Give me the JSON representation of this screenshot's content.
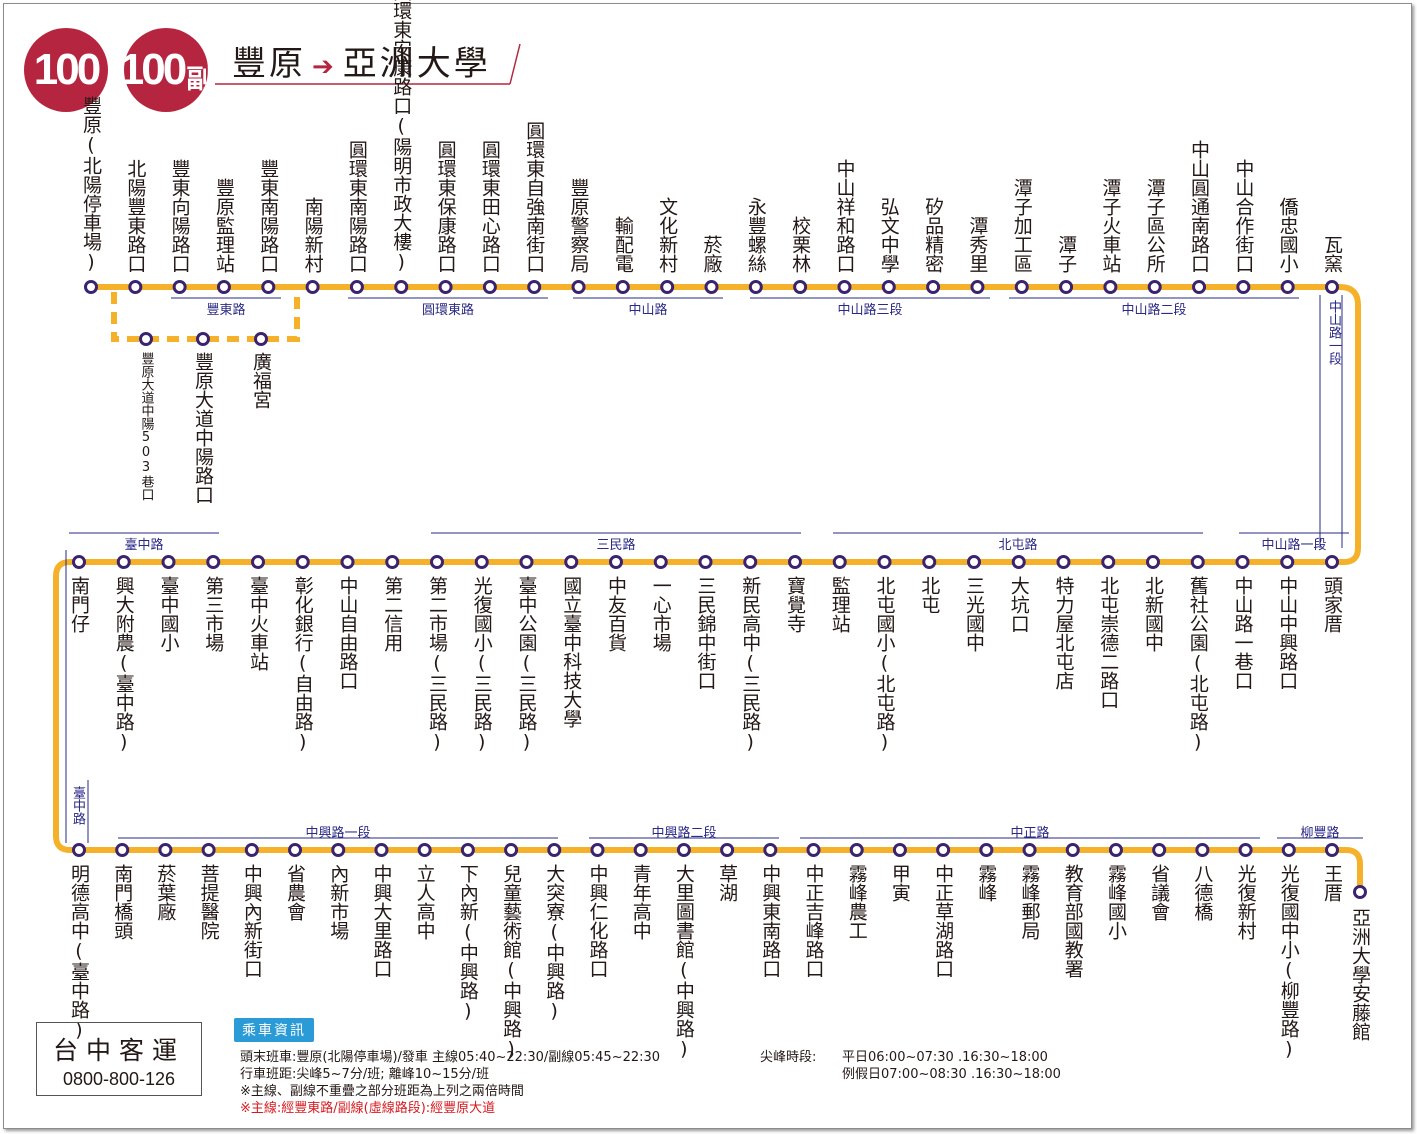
{
  "header": {
    "badge_main": "100",
    "badge_sub_num": "100",
    "badge_sub_suffix": "副",
    "from": "豐原",
    "to": "亞洲大學"
  },
  "colors": {
    "route": "#f6b12b",
    "stop_ring": "#3a2470",
    "brand": "#b5253f",
    "road_label": "#2a2985"
  },
  "rows": [
    {
      "name": "row1",
      "stops": [
        "豐原(北陽停車場)",
        "北陽豐東路口",
        "豐東向陽路口",
        "豐原監理站",
        "豐東南陽路口",
        "南陽新村",
        "圓環東南陽路口",
        "圓環東安康路口(陽明市政大樓)",
        "圓環東保康路口",
        "圓環東田心路口",
        "圓環東自強南街口",
        "豐原警察局",
        "輸配電",
        "文化新村",
        "菸廠",
        "永豐螺絲",
        "校栗林",
        "中山祥和路口",
        "弘文中學",
        "矽品精密",
        "潭秀里",
        "潭子加工區",
        "潭子",
        "潭子火車站",
        "潭子區公所",
        "中山圓通南路口",
        "中山合作街口",
        "僑忠國小",
        "瓦窯"
      ]
    },
    {
      "name": "branch",
      "stops": [
        "豐原大道中陽503巷口",
        "豐原大道中陽路口",
        "廣福宮"
      ]
    },
    {
      "name": "row2",
      "stops": [
        "南門仔",
        "興大附農(臺中路)",
        "臺中國小",
        "第三市場",
        "臺中火車站",
        "彰化銀行(自由路)",
        "中山自由路口",
        "第二信用",
        "第二市場(三民路)",
        "光復國小(三民路)",
        "臺中公園(三民路)",
        "國立臺中科技大學",
        "中友百貨",
        "一心市場",
        "三民錦中街口",
        "新民高中(三民路)",
        "寶覺寺",
        "監理站",
        "北屯國小(北屯路)",
        "北屯",
        "三光國中",
        "大坑口",
        "特力屋北屯店",
        "北屯崇德二路口",
        "北新國中",
        "舊社公園(北屯路)",
        "中山路一巷口",
        "中山中興路口",
        "頭家厝"
      ]
    },
    {
      "name": "row3",
      "stops": [
        "明德高中(臺中路)",
        "南門橋頭",
        "菸葉廠",
        "菩提醫院",
        "中興內新街口",
        "省農會",
        "內新市場",
        "中興大里路口",
        "立人高中",
        "下內新(中興路)",
        "兒童藝術館(中興路)",
        "大突寮(中興路)",
        "中興仁化路口",
        "青年高中",
        "大里圖書館(中興路)",
        "草湖",
        "中興東南路口",
        "中正吉峰路口",
        "霧峰農工",
        "甲寅",
        "中正草湖路口",
        "霧峰",
        "霧峰郵局",
        "教育部國教署",
        "霧峰國小",
        "省議會",
        "八德橋",
        "光復新村",
        "光復國中小(柳豐路)",
        "王厝",
        "亞洲大學安藤館"
      ]
    }
  ],
  "roads": {
    "row1": [
      "豐東路",
      "圓環東路",
      "中山路",
      "中山路三段",
      "中山路二段"
    ],
    "right": [
      "中山路一段",
      "中山路一段"
    ],
    "row2": [
      "臺中路",
      "三民路",
      "北屯路"
    ],
    "left": [
      "臺中路"
    ],
    "row3": [
      "中興路一段",
      "中興路二段",
      "中正路",
      "柳豐路"
    ]
  },
  "company": {
    "name": "台中客運",
    "phone": "0800-800-126"
  },
  "info": {
    "label": "乘車資訊",
    "line1": "頭末班車:豐原(北陽停車場)/發車  主線05:40~22:30/副線05:45~22:30",
    "line2": "行車班距:尖峰5~7分/班; 離峰10~15分/班",
    "line3": "※主線、副線不重疊之部分班距為上列之兩倍時間",
    "line4": "※主線:經豐東路/副線(虛線路段):經豐原大道",
    "peak_label": "尖峰時段:",
    "peak_weekday": "平日06:00~07:30 .16:30~18:00",
    "peak_holiday": "例假日07:00~08:30 .16:30~18:00"
  }
}
